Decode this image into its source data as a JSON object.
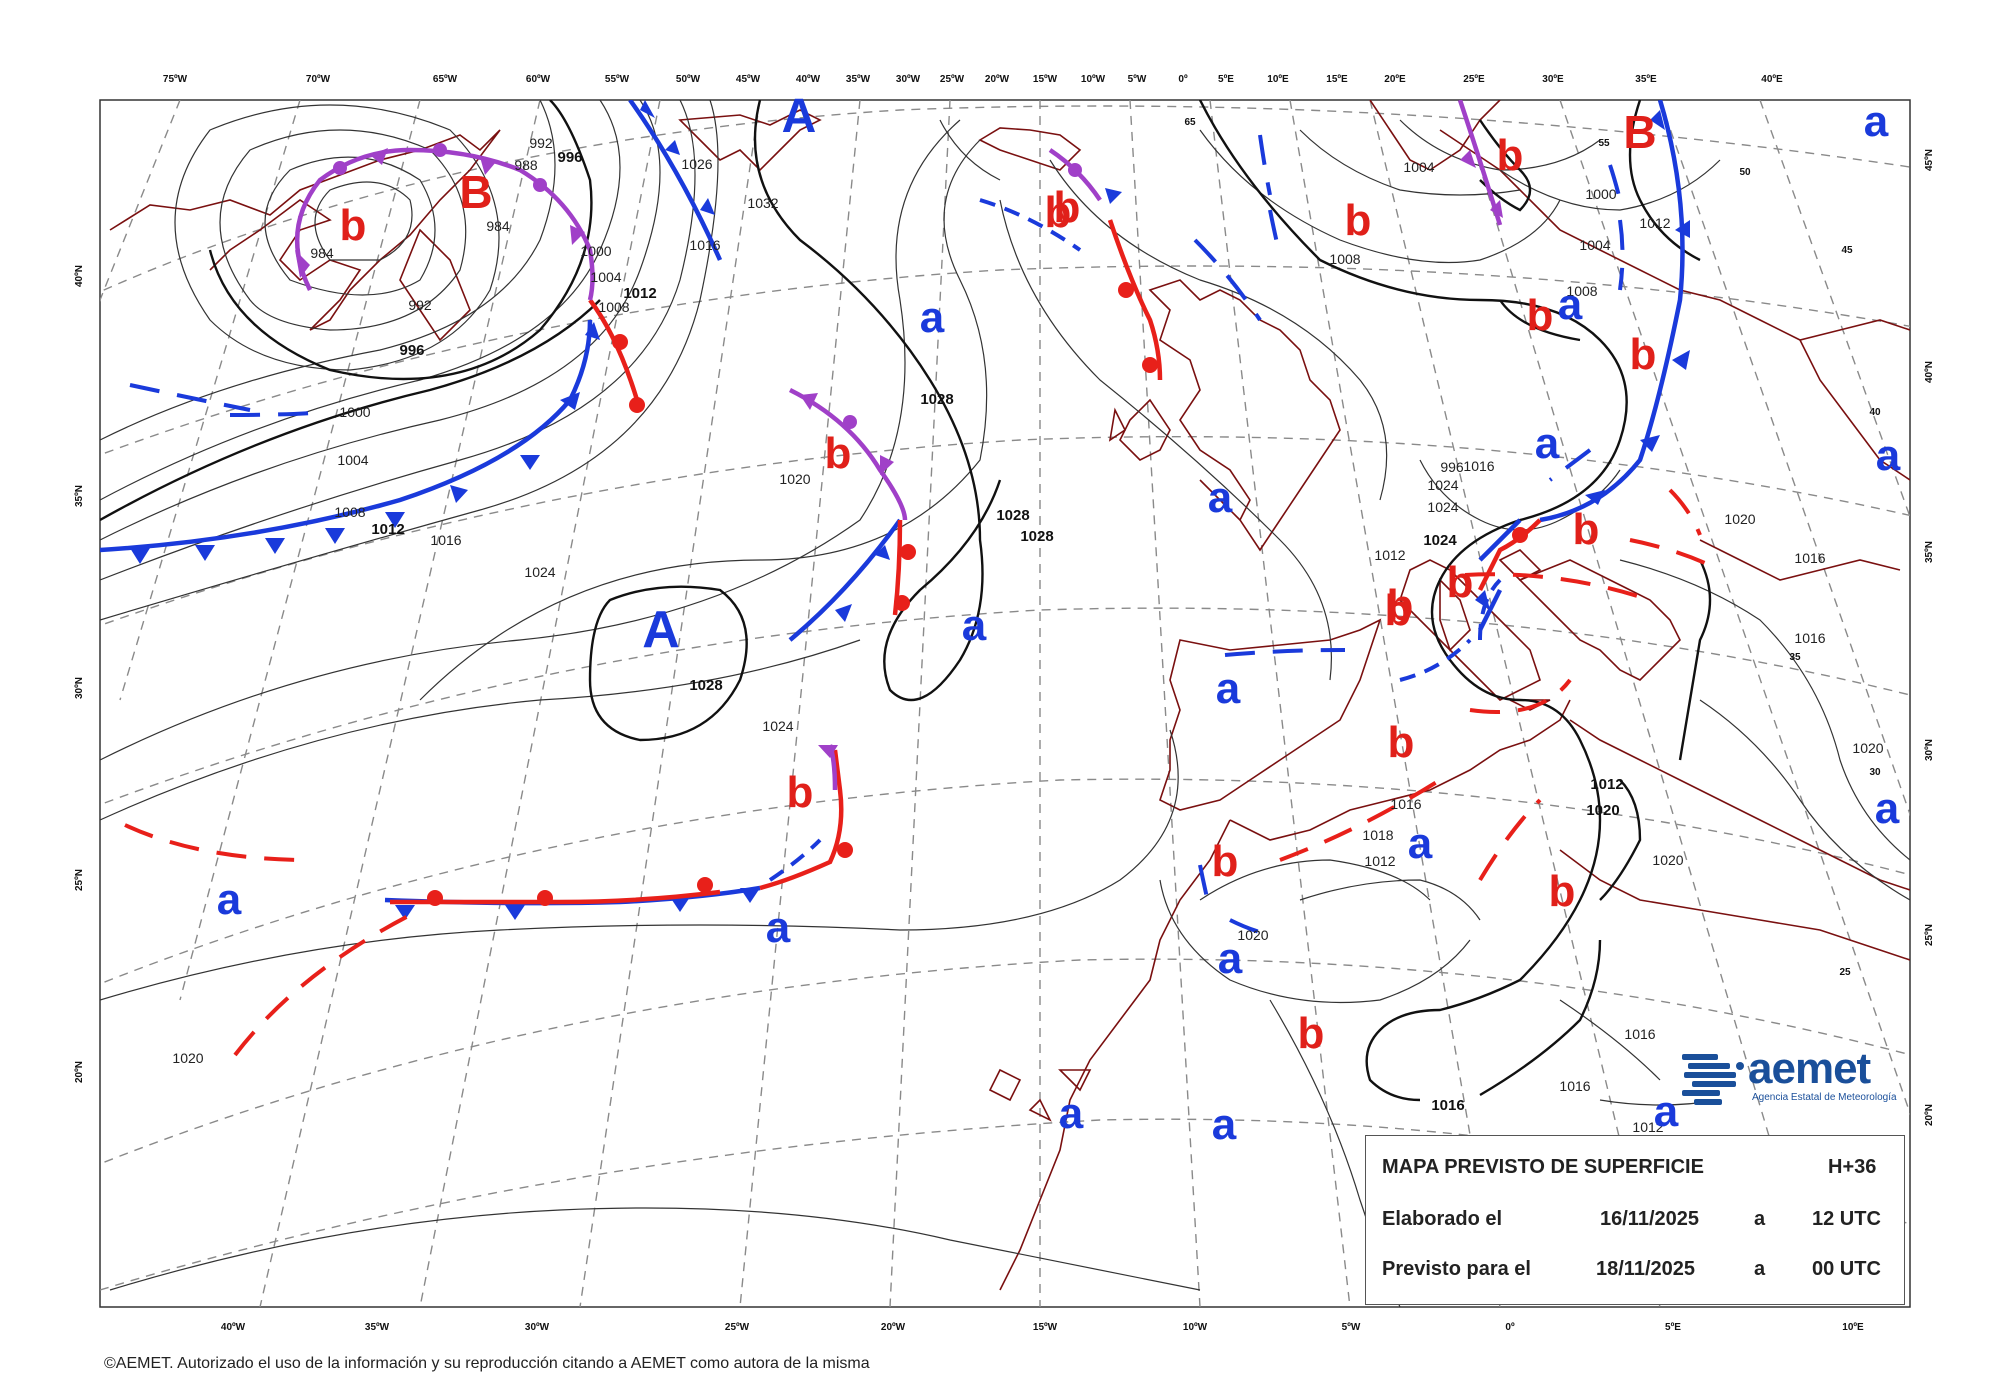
{
  "info": {
    "title": "MAPA PREVISTO DE SUPERFICIE",
    "forecast_hour": "H+36",
    "elaborated_label": "Elaborado el",
    "elaborated_date": "16/11/2025",
    "elaborated_a": "a",
    "elaborated_time": "12 UTC",
    "valid_label": "Previsto para el",
    "valid_date": "18/11/2025",
    "valid_a": "a",
    "valid_time": "00 UTC"
  },
  "copyright": "©AEMET. Autorizado el uso de la información y su reproducción citando a AEMET como autora de la misma",
  "logo": {
    "name": "aemet",
    "subtitle": "Agencia Estatal de Meteorología"
  },
  "top_longitudes": [
    "75ºW",
    "70ºW",
    "65ºW",
    "60ºW",
    "55ºW",
    "50ºW",
    "45ºW",
    "40ºW",
    "35ºW",
    "30ºW",
    "25ºW",
    "20ºW",
    "15ºW",
    "10ºW",
    "5ºW",
    "0º",
    "5ºE",
    "10ºE",
    "15ºE",
    "20ºE",
    "25ºE",
    "30ºE",
    "35ºE",
    "40ºE"
  ],
  "bottom_longitudes": [
    "40ºW",
    "35ºW",
    "30ºW",
    "25ºW",
    "20ºW",
    "15ºW",
    "10ºW",
    "5ºW",
    "0º",
    "5ºE",
    "10ºE"
  ],
  "left_latitudes": [
    "40ºN",
    "35ºN",
    "30ºN",
    "25ºN",
    "20ºN"
  ],
  "right_latitudes": [
    "45ºN",
    "40ºN",
    "35ºN",
    "30ºN",
    "25ºN",
    "20ºN"
  ],
  "pressure_centers": [
    {
      "label": "A",
      "color": "#1a3adb"
    },
    {
      "label": "A",
      "color": "#1a3adb"
    },
    {
      "label": "B",
      "color": "#e0201a"
    },
    {
      "label": "B",
      "color": "#e0201a"
    }
  ],
  "minor_highs": [
    "a",
    "a",
    "a",
    "a",
    "a",
    "a",
    "a",
    "a",
    "a",
    "a",
    "a",
    "a",
    "a",
    "a",
    "a",
    "a"
  ],
  "minor_lows": [
    "b",
    "b",
    "b",
    "b",
    "b",
    "b",
    "b",
    "b",
    "b",
    "b",
    "b",
    "b",
    "b",
    "b",
    "b",
    "b",
    "b"
  ],
  "isobar_labels": [
    "992",
    "996",
    "988",
    "984",
    "1000",
    "1004",
    "1008",
    "1012",
    "996",
    "984",
    "992",
    "1000",
    "1004",
    "1008",
    "1012",
    "1016",
    "1024",
    "1028",
    "1028",
    "1028",
    "1028",
    "1032",
    "1026",
    "1016",
    "1016",
    "1020",
    "1024",
    "1020",
    "1020",
    "1004",
    "1000",
    "1004",
    "1008",
    "1008",
    "1012",
    "996",
    "1024",
    "1024",
    "1024",
    "1012",
    "1020",
    "1016",
    "1016",
    "1016",
    "1018",
    "1012",
    "1012",
    "1020",
    "1020",
    "1016",
    "1016",
    "1016",
    "1012",
    "1020"
  ],
  "lat_ticks_map": [
    "65",
    "55",
    "50",
    "45",
    "40",
    "35",
    "30",
    "25"
  ],
  "colors": {
    "cold_front": "#1a3adb",
    "warm_front": "#e8201a",
    "occluded_front": "#a040c8",
    "coastline": "#7a1010",
    "grid": "#888888",
    "isobar": "#333333",
    "high": "#1a3adb",
    "low": "#e0201a"
  }
}
